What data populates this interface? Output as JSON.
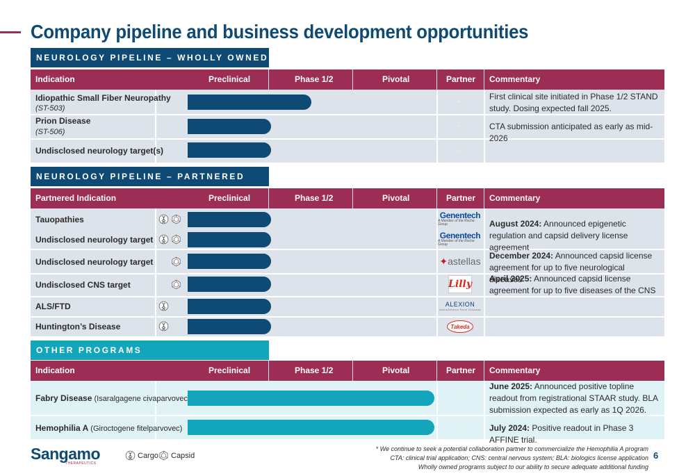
{
  "title": "Company pipeline and business development opportunities",
  "colors": {
    "navy": "#0e4a74",
    "maroon": "#9c2d55",
    "teal": "#12a5bb"
  },
  "sections": {
    "owned": "NEUROLOGY PIPELINE – WHOLLY OWNED",
    "partnered": "NEUROLOGY PIPELINE – PARTNERED",
    "other": "OTHER PROGRAMS"
  },
  "header": {
    "indication": "Indication",
    "partnered_indication": "Partnered Indication",
    "preclinical": "Preclinical",
    "phase12": "Phase 1/2",
    "pivotal": "Pivotal",
    "partner": "Partner",
    "commentary": "Commentary"
  },
  "owned_rows": [
    {
      "name": "Idiopathic Small Fiber Neuropathy",
      "code": "(ST-503)",
      "partner": "-",
      "progress": 0.37
    },
    {
      "name": "Prion Disease",
      "code": "(ST-506)",
      "partner": "-",
      "progress": 0.25
    },
    {
      "name": "Undisclosed neurology target(s)",
      "partner": "-",
      "progress": 0.25
    }
  ],
  "owned_comments": {
    "c1": "First clinical site initiated in Phase 1/2 STAND study. Dosing expected fall 2025.",
    "c2": "CTA submission anticipated as early as mid-2026"
  },
  "partnered_rows": [
    {
      "name": "Tauopathies",
      "icons": [
        "cargo-icon",
        "capsid-icon"
      ],
      "partner": "Genentech"
    },
    {
      "name": "Undisclosed neurology target",
      "icons": [
        "cargo-icon",
        "capsid-icon"
      ],
      "partner": "Genentech"
    },
    {
      "name": "Undisclosed neurology target",
      "icons": [
        "capsid-icon"
      ],
      "partner": "astellas"
    },
    {
      "name": "Undisclosed CNS target",
      "icons": [
        "capsid-icon"
      ],
      "partner": "Lilly"
    },
    {
      "name": "ALS/FTD",
      "icons": [
        "cargo-icon"
      ],
      "partner": "ALEXION"
    },
    {
      "name": "Huntington’s Disease",
      "icons": [
        "cargo-icon"
      ],
      "partner": "Takeda"
    }
  ],
  "partnered_progress": 0.25,
  "partner_logos": {
    "genentech_sub": "A Member of the Roche Group",
    "alexion_sub": "AstraZeneca Rare Disease"
  },
  "partnered_comments": [
    {
      "bold": "August 2024:",
      "text": " Announced epigenetic regulation and capsid delivery license agreement"
    },
    {
      "bold": "December 2024:",
      "text": " Announced capsid license agreement for up to five neurological diseases"
    },
    {
      "bold": "April 2025:",
      "text": " Announced capsid license agreement for up to five diseases of the CNS"
    }
  ],
  "other_rows": [
    {
      "name": "Fabry Disease",
      "detail": " (Isaralgagene civaparvovec)",
      "partner": "-",
      "progress": 0.74,
      "comment_bold": "June 2025:",
      "comment": " Announced positive topline readout from registrational STAAR study. BLA submission expected as early as 1Q 2026."
    },
    {
      "name": "Hemophilia A",
      "detail": " (Giroctogene fitelparvovec)",
      "partner": "-",
      "progress": 0.74,
      "comment_bold": "July 2024:",
      "comment": " Positive readout in Phase 3 AFFINE trial."
    }
  ],
  "footer": {
    "logo": "Sangamo",
    "logo_sub": "THERAPEUTICS",
    "legend_cargo": "Cargo",
    "legend_capsid": "Capsid",
    "note1": "* We continue to seek a potential collaboration partner to commercialize the Hemophilia A program",
    "note2": "CTA: clinical trial application; CNS: central nervous system; BLA: biologics license application",
    "note3": "Wholly owned programs subject to our ability to secure adequate additional funding",
    "page": "6"
  }
}
